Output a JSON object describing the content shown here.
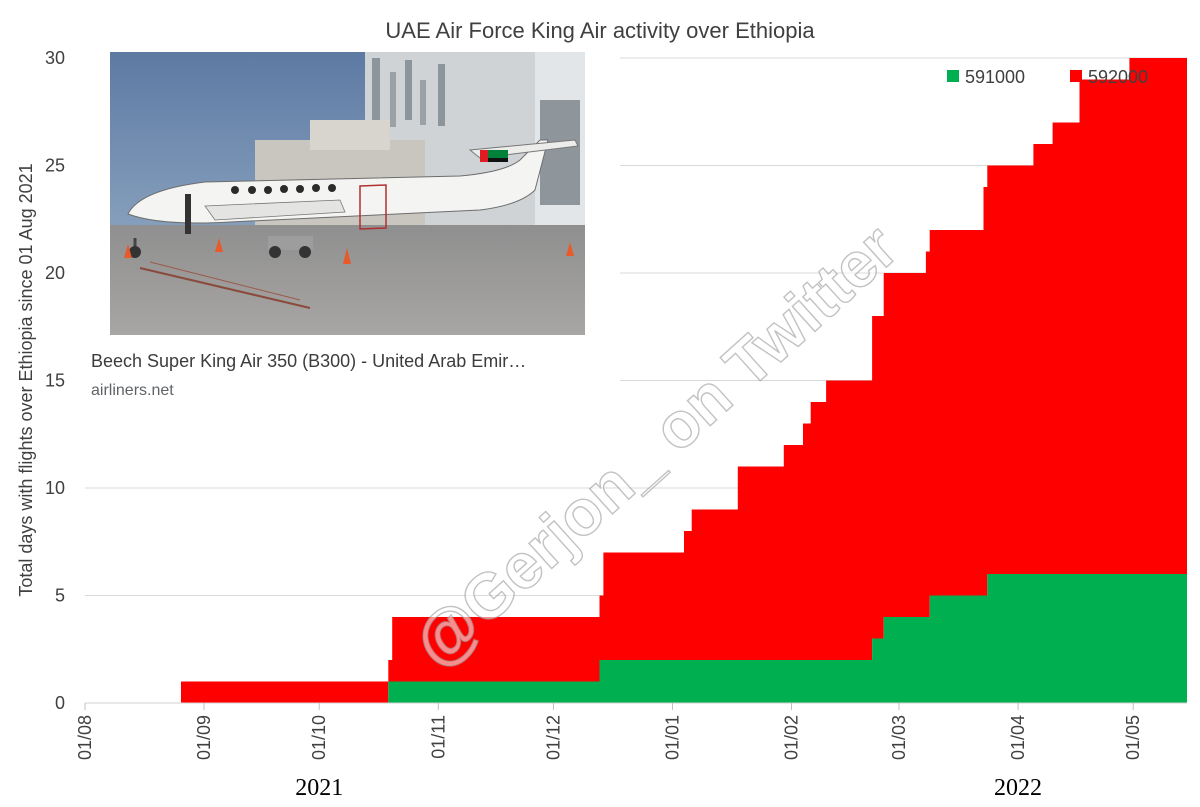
{
  "chart_data": {
    "type": "area",
    "stacked": true,
    "step": true,
    "title": "UAE Air Force King Air activity over Ethiopia",
    "ylabel": "Total days with flights over Ethiopia since 01 Aug 2021",
    "xlabel": "",
    "ylim": [
      0,
      30
    ],
    "yticks": [
      "0",
      "5",
      "10",
      "15",
      "20",
      "25",
      "30"
    ],
    "xtick_labels": [
      "01/08",
      "01/09",
      "01/10",
      "01/11",
      "01/12",
      "01/01",
      "01/02",
      "01/03",
      "01/04",
      "01/05"
    ],
    "xtick_dates": [
      "2021-08-01",
      "2021-09-01",
      "2021-10-01",
      "2021-11-01",
      "2021-12-01",
      "2022-01-01",
      "2022-02-01",
      "2022-03-01",
      "2022-04-01",
      "2022-05-01"
    ],
    "xlim": [
      "2021-08-01",
      "2022-05-15"
    ],
    "year_labels": [
      {
        "text": "2021",
        "date": "2021-10-01"
      },
      {
        "text": "2022",
        "date": "2022-04-01"
      }
    ],
    "grid": "horizontal",
    "legend_position": "top-right",
    "series": [
      {
        "name": "591000",
        "color": "#00b050",
        "points": [
          [
            "2021-08-01",
            0
          ],
          [
            "2021-10-19",
            1
          ],
          [
            "2021-12-13",
            2
          ],
          [
            "2022-02-22",
            3
          ],
          [
            "2022-02-25",
            4
          ],
          [
            "2022-03-09",
            5
          ],
          [
            "2022-03-24",
            6
          ],
          [
            "2022-05-15",
            6
          ]
        ]
      },
      {
        "name": "592000",
        "color": "#ff0000",
        "points": [
          [
            "2021-08-01",
            0
          ],
          [
            "2021-08-26",
            1
          ],
          [
            "2021-10-20",
            3
          ],
          [
            "2021-12-14",
            5
          ],
          [
            "2022-01-04",
            6
          ],
          [
            "2022-01-06",
            7
          ],
          [
            "2022-01-18",
            9
          ],
          [
            "2022-01-30",
            10
          ],
          [
            "2022-02-04",
            11
          ],
          [
            "2022-02-06",
            12
          ],
          [
            "2022-02-10",
            13
          ],
          [
            "2022-02-22",
            15
          ],
          [
            "2022-02-25",
            16
          ],
          [
            "2022-03-08",
            17
          ],
          [
            "2022-03-23",
            19
          ],
          [
            "2022-04-05",
            20
          ],
          [
            "2022-04-10",
            21
          ],
          [
            "2022-04-17",
            23
          ],
          [
            "2022-04-30",
            24
          ],
          [
            "2022-05-15",
            24
          ]
        ]
      }
    ]
  },
  "photo_card": {
    "caption": "Beech Super King Air 350 (B300) - United Arab Emir…",
    "source": "airliners.net"
  },
  "watermark": "@Gerjon_ on Twitter"
}
